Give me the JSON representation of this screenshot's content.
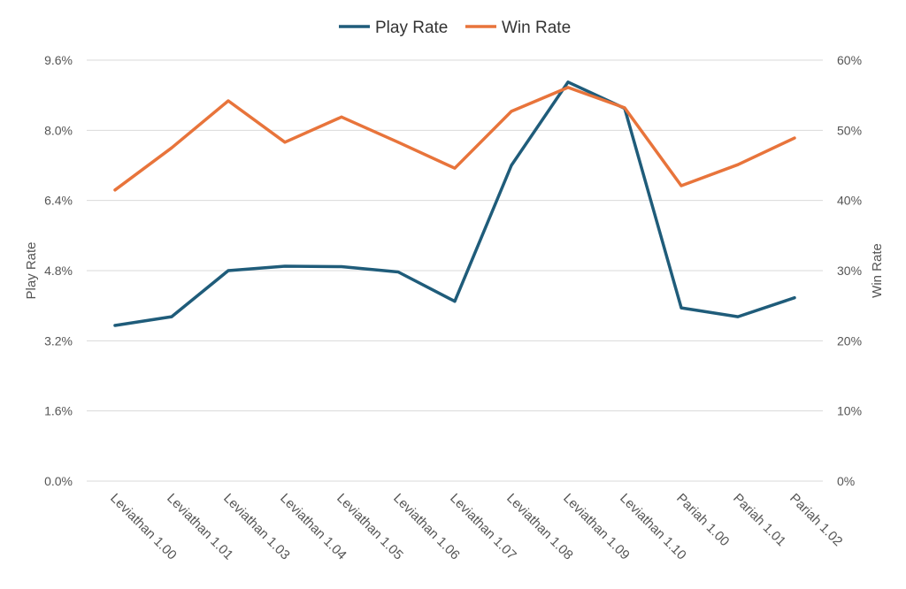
{
  "chart_data": {
    "type": "line",
    "categories": [
      "Leviathan 1.00",
      "Leviathan 1.01",
      "Leviathan 1.03",
      "Leviathan 1.04",
      "Leviathan 1.05",
      "Leviathan 1.06",
      "Leviathan 1.07",
      "Leviathan 1.08",
      "Leviathan 1.09",
      "Leviathan 1.10",
      "Pariah 1.00",
      "Pariah 1.01",
      "Pariah 1.02"
    ],
    "series": [
      {
        "name": "Play Rate",
        "axis": "left",
        "color": "#1f5c7a",
        "unit": "%",
        "values": [
          3.55,
          3.75,
          4.8,
          4.9,
          4.89,
          4.77,
          4.1,
          7.2,
          9.1,
          8.5,
          3.95,
          3.75,
          4.18
        ]
      },
      {
        "name": "Win Rate",
        "axis": "right",
        "color": "#e8743b",
        "unit": "%",
        "values": [
          41.5,
          47.5,
          54.2,
          48.3,
          51.9,
          48.3,
          44.6,
          52.7,
          56.1,
          53.2,
          42.1,
          45.1,
          48.9
        ]
      }
    ],
    "y_left": {
      "label": "Play Rate",
      "min": 0,
      "max": 9.6,
      "ticks": [
        "0.0%",
        "1.6%",
        "3.2%",
        "4.8%",
        "6.4%",
        "8.0%",
        "9.6%"
      ]
    },
    "y_right": {
      "label": "Win Rate",
      "min": 0,
      "max": 60,
      "ticks": [
        "0%",
        "10%",
        "20%",
        "30%",
        "40%",
        "50%",
        "60%"
      ]
    },
    "grid": true,
    "legend": "top-center"
  }
}
